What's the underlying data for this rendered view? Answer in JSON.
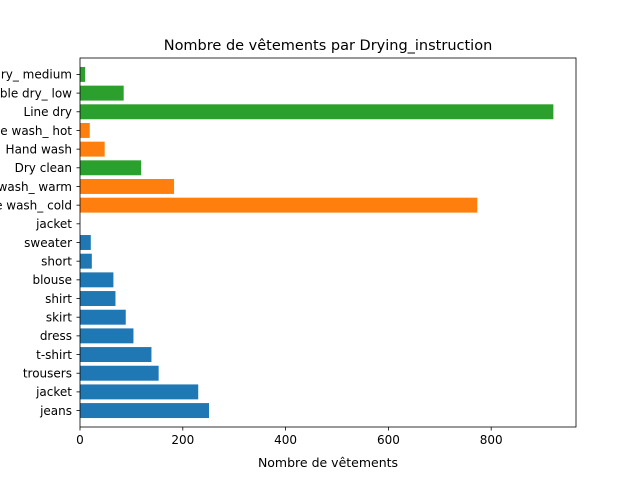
{
  "chart_data": {
    "type": "bar",
    "orientation": "horizontal",
    "title": "Nombre de vêtements par Drying_instruction",
    "xlabel": "Nombre de vêtements",
    "ylabel": "",
    "xlim": [
      0,
      965
    ],
    "xticks": [
      0,
      200,
      400,
      600,
      800
    ],
    "grid": false,
    "categories": [
      "jeans",
      "jacket",
      "trousers",
      "t-shirt",
      "dress",
      "skirt",
      "shirt",
      "blouse",
      "short",
      "sweater",
      "jacket",
      "Machine wash_ cold",
      "Machine wash_ warm",
      "Dry clean",
      "Hand wash",
      "Machine wash_ hot",
      "Line dry",
      "Tumble dry_ low",
      "Tumble dry_ medium"
    ],
    "values": [
      251,
      230,
      153,
      139,
      104,
      89,
      69,
      65,
      23,
      21,
      0,
      773,
      183,
      119,
      48,
      19,
      921,
      85,
      10
    ],
    "colors": [
      "#1f77b4",
      "#1f77b4",
      "#1f77b4",
      "#1f77b4",
      "#1f77b4",
      "#1f77b4",
      "#1f77b4",
      "#1f77b4",
      "#1f77b4",
      "#1f77b4",
      "#1f77b4",
      "#ff7f0e",
      "#ff7f0e",
      "#2ca02c",
      "#ff7f0e",
      "#ff7f0e",
      "#2ca02c",
      "#2ca02c",
      "#2ca02c"
    ]
  }
}
